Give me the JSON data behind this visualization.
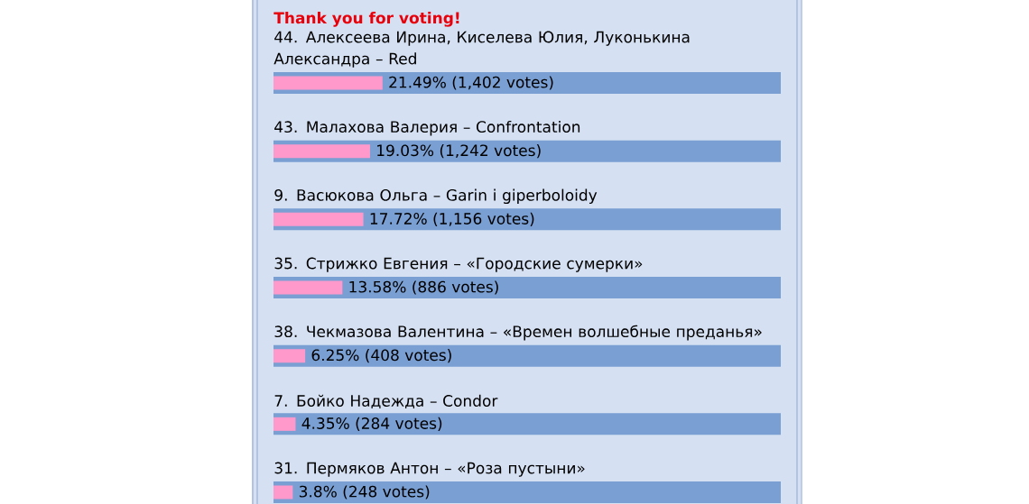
{
  "chart_data": {
    "type": "bar",
    "orientation": "horizontal",
    "title": "Thank you for voting!",
    "categories": [
      "44. Алексеева Ирина, Киселева Юлия, Луконькина Александра – Red",
      "43. Малахова Валерия – Confrontation",
      "9. Васюкова Ольга – Garin i giperboloidy",
      "35. Стрижко Евгения – «Городские сумерки»",
      "38. Чекмазова Валентина – «Времен волшебные преданья»",
      "7. Бойко Надежда – Condor",
      "31. Пермяков Антон – «Роза пустыни»"
    ],
    "series": [
      {
        "color": "#7a9fd3",
        "values": [
          100,
          100,
          100,
          100,
          100,
          100,
          100
        ]
      },
      {
        "color": "#ff99cc",
        "values": [
          21.49,
          19.03,
          17.72,
          13.58,
          6.25,
          4.35,
          3.8
        ],
        "value_labels": [
          "21.49%  (1,402 votes)",
          "19.03%  (1,242 votes)",
          "17.72%  (1,156 votes)",
          "13.58%  (886 votes)",
          "6.25%  (408 votes)",
          "4.35%  (284 votes)",
          "3.8%  (248 votes)"
        ]
      }
    ],
    "tick_labels": "y"
  }
}
